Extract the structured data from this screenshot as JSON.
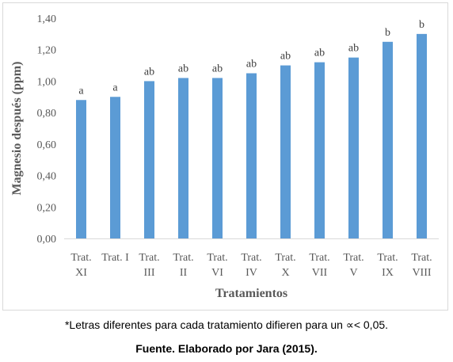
{
  "chart_data": {
    "type": "bar",
    "categories": [
      [
        "Trat.",
        "XI"
      ],
      [
        "Trat. I"
      ],
      [
        "Trat.",
        "III"
      ],
      [
        "Trat.",
        "II"
      ],
      [
        "Trat.",
        "VI"
      ],
      [
        "Trat.",
        "IV"
      ],
      [
        "Trat.",
        "X"
      ],
      [
        "Trat.",
        "VII"
      ],
      [
        "Trat.",
        "V"
      ],
      [
        "Trat.",
        "IX"
      ],
      [
        "Trat.",
        "VIII"
      ]
    ],
    "values": [
      0.88,
      0.9,
      1.0,
      1.02,
      1.02,
      1.05,
      1.1,
      1.12,
      1.15,
      1.25,
      1.3
    ],
    "letters": [
      "a",
      "a",
      "ab",
      "ab",
      "ab",
      "ab",
      "ab",
      "ab",
      "ab",
      "b",
      "b"
    ],
    "xlabel": "Tratamientos",
    "ylabel": "Magnesio después (ppm)",
    "ylim": [
      0,
      1.4
    ],
    "yticks": [
      "0,00",
      "0,20",
      "0,40",
      "0,60",
      "0,80",
      "1,00",
      "1,20",
      "1,40"
    ],
    "grid": false,
    "bar_color": "#5b9bd5"
  },
  "captions": {
    "note": "*Letras diferentes para cada tratamiento difieren para un ∝< 0,05.",
    "source": "Fuente. Elaborado por Jara (2015)."
  }
}
